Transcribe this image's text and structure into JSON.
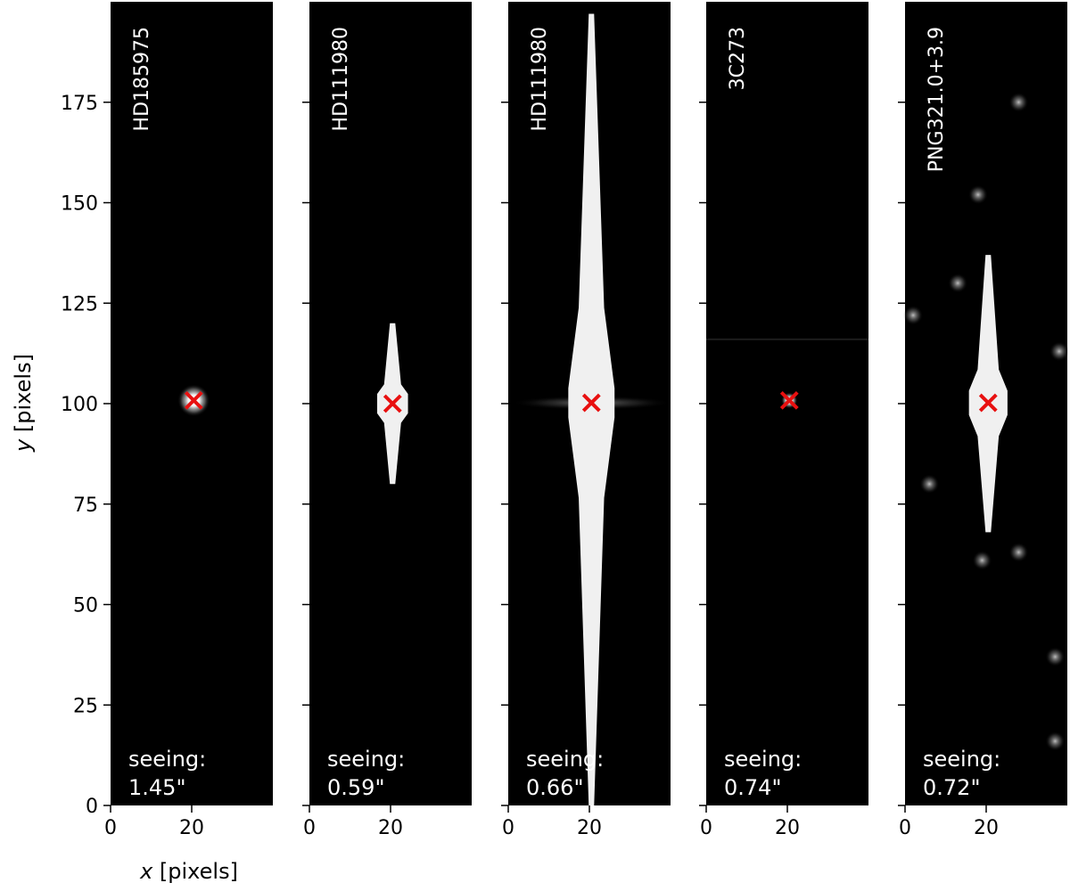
{
  "chart_data": {
    "type": "image",
    "xlabel_var": "x",
    "xlabel_unit": "[pixels]",
    "ylabel_var": "y",
    "ylabel_unit": "[pixels]",
    "xlim": [
      0,
      40
    ],
    "ylim": [
      0,
      200
    ],
    "x_ticks": [
      0,
      20
    ],
    "y_ticks": [
      0,
      25,
      50,
      75,
      100,
      125,
      150,
      175
    ],
    "panels": [
      {
        "target": "HD185975",
        "seeing_label": "seeing:",
        "seeing_value": "1.45\"",
        "marker": {
          "x": 20.5,
          "y": 100.8
        },
        "saturation": null,
        "star_glow_size": 4
      },
      {
        "target": "HD111980",
        "seeing_label": "seeing:",
        "seeing_value": "0.59\"",
        "marker": {
          "x": 20.5,
          "y": 100.0
        },
        "saturation": {
          "y_min": 80,
          "y_max": 120
        },
        "star_glow_size": 4
      },
      {
        "target": "HD111980",
        "seeing_label": "seeing:",
        "seeing_value": "0.66\"",
        "marker": {
          "x": 20.5,
          "y": 100.2
        },
        "saturation": {
          "y_min": 0,
          "y_max": 197
        },
        "star_glow_size": 6
      },
      {
        "target": "3C273",
        "seeing_label": "seeing:",
        "seeing_value": "0.74\"",
        "marker": {
          "x": 20.5,
          "y": 100.8
        },
        "saturation": null,
        "star_glow_size": 2
      },
      {
        "target": "PNG321.0+3.9",
        "seeing_label": "seeing:",
        "seeing_value": "0.72\"",
        "marker": {
          "x": 20.5,
          "y": 100.2
        },
        "saturation": {
          "y_min": 68,
          "y_max": 137
        },
        "star_glow_size": 5,
        "field_stars": [
          {
            "x": 2,
            "y": 122
          },
          {
            "x": 38,
            "y": 113
          },
          {
            "x": 19,
            "y": 61
          },
          {
            "x": 18,
            "y": 152
          },
          {
            "x": 28,
            "y": 63
          },
          {
            "x": 28,
            "y": 175
          },
          {
            "x": 13,
            "y": 130
          },
          {
            "x": 37,
            "y": 37
          },
          {
            "x": 37,
            "y": 16
          },
          {
            "x": 6,
            "y": 80
          }
        ]
      }
    ],
    "colors": {
      "image_background": "#000000",
      "saturated": "#f0f0f0",
      "marker": "#e81010"
    }
  }
}
